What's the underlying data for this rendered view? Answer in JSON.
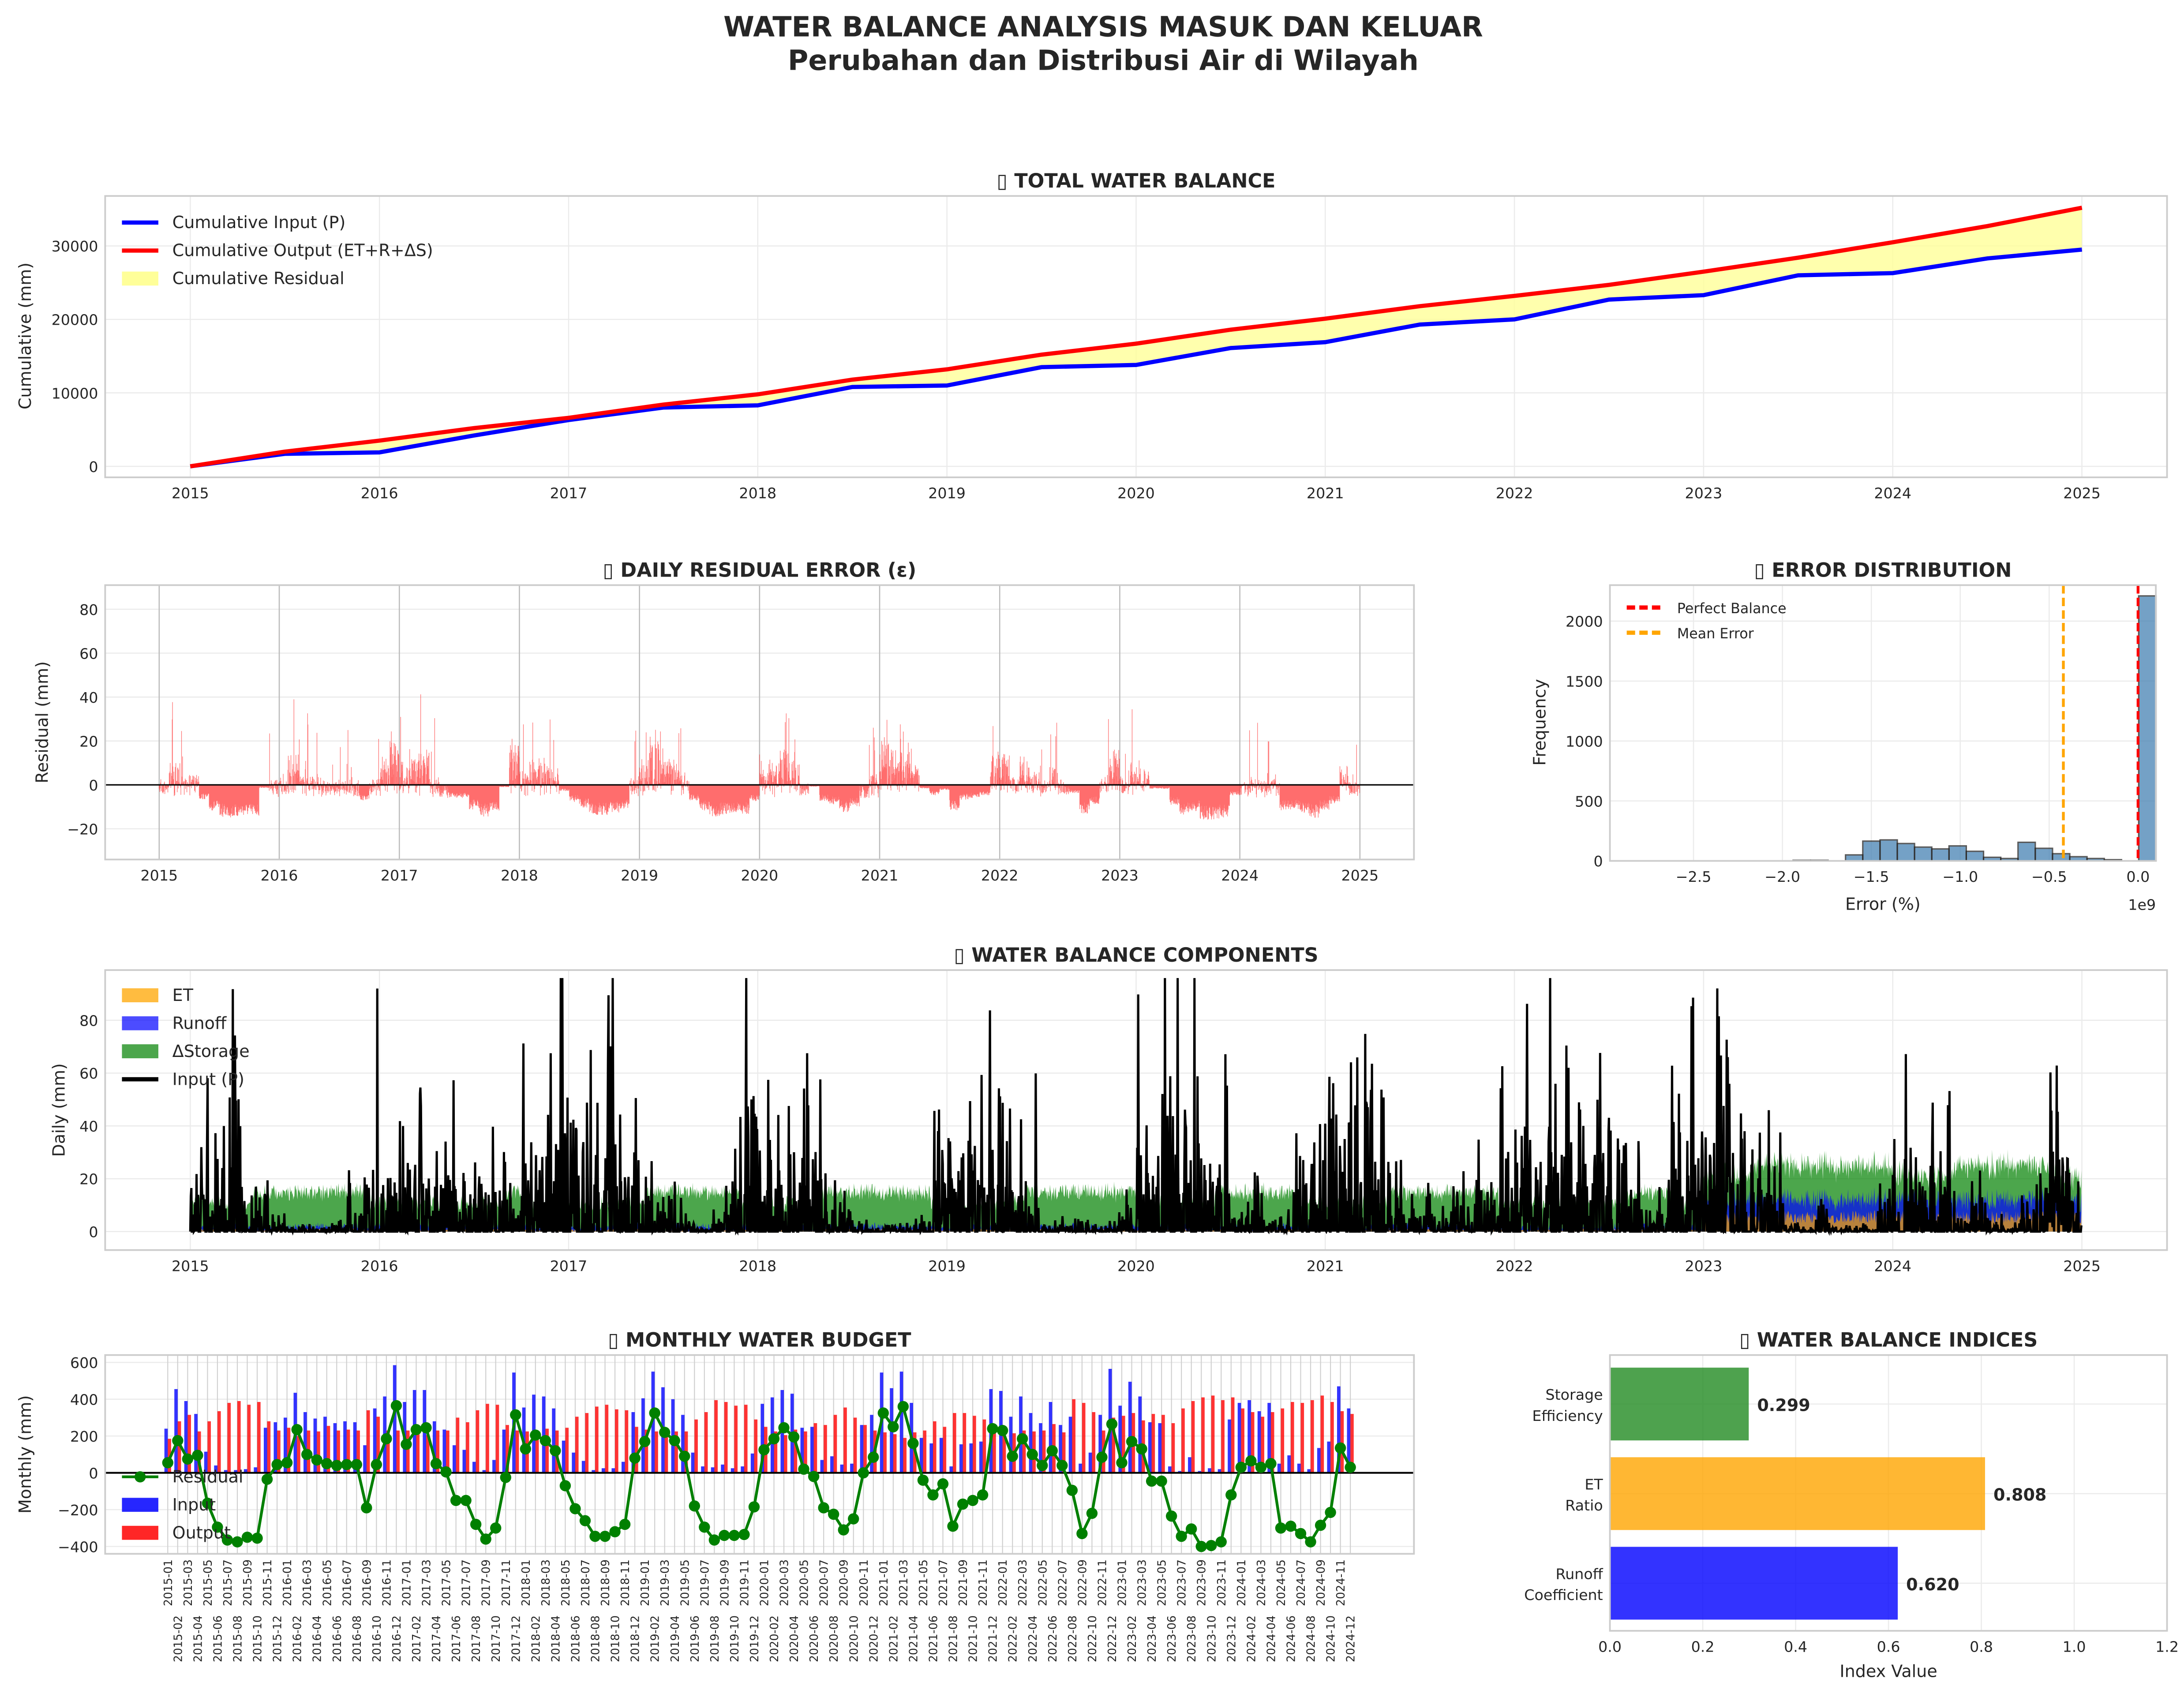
{
  "figure": {
    "title_line1": "WATER BALANCE ANALYSIS MASUK DAN KELUAR",
    "title_line2": "Perubahan dan Distribusi Air di Wilayah"
  },
  "chart_data": [
    {
      "id": "cumulative",
      "type": "line",
      "title": "TOTAL WATER BALANCE",
      "title_icon": "missing-glyph-box",
      "xlabel": "",
      "ylabel": "Cumulative (mm)",
      "xlim": [
        2014.55,
        2025.45
      ],
      "ylim": [
        -1500,
        36800
      ],
      "xticks": [
        "2015",
        "2016",
        "2017",
        "2018",
        "2019",
        "2020",
        "2021",
        "2022",
        "2023",
        "2024",
        "2025"
      ],
      "yticks": [
        "0",
        "10000",
        "20000",
        "30000"
      ],
      "grid": true,
      "legend": "top-left",
      "x": [
        2015,
        2015.5,
        2016,
        2016.5,
        2017,
        2017.5,
        2018,
        2018.5,
        2019,
        2019.5,
        2020,
        2020.5,
        2021,
        2021.5,
        2022,
        2022.5,
        2023,
        2023.5,
        2024,
        2024.5,
        2025
      ],
      "series": [
        {
          "name": "Cumulative Input (P)",
          "color": "#0000ff",
          "values": [
            0,
            1700,
            1900,
            4200,
            6300,
            8000,
            8300,
            10800,
            11000,
            13500,
            13800,
            16100,
            16900,
            19300,
            20000,
            22700,
            23300,
            26000,
            26300,
            28300,
            29500
          ]
        },
        {
          "name": "Cumulative Output (ET+R+ΔS)",
          "color": "#ff0000",
          "values": [
            0,
            2000,
            3500,
            5200,
            6600,
            8400,
            9800,
            11800,
            13200,
            15200,
            16700,
            18600,
            20100,
            21800,
            23200,
            24700,
            26500,
            28400,
            30500,
            32700,
            35200
          ]
        },
        {
          "name": "Cumulative Residual",
          "color": "#ffff99",
          "type": "area-between"
        }
      ]
    },
    {
      "id": "daily-residual",
      "type": "bar",
      "title": "DAILY RESIDUAL ERROR (ε)",
      "title_icon": "missing-glyph-box",
      "xlabel": "",
      "ylabel": "Residual (mm)",
      "xlim": [
        2014.55,
        2025.45
      ],
      "ylim": [
        -34,
        91
      ],
      "xticks": [
        "2015",
        "2016",
        "2017",
        "2018",
        "2019",
        "2020",
        "2021",
        "2022",
        "2023",
        "2024",
        "2025"
      ],
      "yticks": [
        "−20",
        "0",
        "20",
        "40",
        "60",
        "80"
      ],
      "color": "#ff0000",
      "grid": true,
      "note_values": "daily bars derived from monthly residual / days"
    },
    {
      "id": "error-distribution",
      "type": "bar",
      "title": "ERROR DISTRIBUTION",
      "title_icon": "missing-glyph-box",
      "xlabel": "Error (%)",
      "ylabel": "Frequency",
      "x_offset_label": "1e9",
      "xlim": [
        -2.97,
        0.1
      ],
      "ylim": [
        0,
        2300
      ],
      "xticks": [
        "−2.5",
        "−2.0",
        "−1.5",
        "−1.0",
        "−0.5",
        "0.0"
      ],
      "yticks": [
        "0",
        "500",
        "1000",
        "1500",
        "2000"
      ],
      "bin_width": 0.097,
      "color": "#4682b4",
      "grid": true,
      "legend": "top-left",
      "bins_start": [
        -1.94,
        -1.84,
        -1.74,
        -1.645,
        -1.548,
        -1.451,
        -1.354,
        -1.257,
        -1.16,
        -1.063,
        -0.966,
        -0.869,
        -0.772,
        -0.675,
        -0.578,
        -0.481,
        -0.384,
        -0.287,
        -0.19,
        -0.093,
        0.004
      ],
      "counts": [
        5,
        5,
        0,
        50,
        165,
        175,
        145,
        115,
        100,
        125,
        80,
        30,
        20,
        155,
        105,
        60,
        35,
        20,
        10,
        0,
        2210
      ],
      "lines": [
        {
          "name": "Perfect Balance",
          "x": 0.0,
          "color": "#ff0000"
        },
        {
          "name": "Mean Error",
          "x": -0.42,
          "color": "#ffa500"
        }
      ]
    },
    {
      "id": "components",
      "type": "area",
      "title": "WATER BALANCE COMPONENTS",
      "title_icon": "missing-glyph-box",
      "xlabel": "",
      "ylabel": "Daily (mm)",
      "xlim": [
        2014.55,
        2025.45
      ],
      "ylim": [
        -7,
        99
      ],
      "xticks": [
        "2015",
        "2016",
        "2017",
        "2018",
        "2019",
        "2020",
        "2021",
        "2022",
        "2023",
        "2024",
        "2025"
      ],
      "yticks": [
        "0",
        "20",
        "40",
        "60",
        "80"
      ],
      "grid": true,
      "legend": "top-left",
      "series": [
        {
          "name": "ET",
          "color": "#ffa500"
        },
        {
          "name": "Runoff",
          "color": "#0000ff"
        },
        {
          "name": "ΔStorage",
          "color": "#008000"
        },
        {
          "name": "Input (P)",
          "color": "#000000"
        }
      ]
    },
    {
      "id": "monthly-budget",
      "type": "bar",
      "title": "MONTHLY WATER BUDGET",
      "title_icon": "missing-glyph-box",
      "xlabel": "",
      "ylabel": "Monthly (mm)",
      "ylim": [
        -440,
        640
      ],
      "yticks": [
        "−400",
        "−200",
        "0",
        "200",
        "400",
        "600"
      ],
      "grid": true,
      "legend": "bottom-left",
      "series": [
        {
          "name": "Input",
          "color": "#0000ff",
          "values": [
            240,
            455,
            390,
            320,
            115,
            40,
            15,
            15,
            20,
            30,
            245,
            275,
            300,
            435,
            330,
            295,
            305,
            270,
            280,
            275,
            150,
            350,
            415,
            585,
            385,
            450,
            450,
            280,
            235,
            150,
            125,
            60,
            15,
            70,
            235,
            545,
            355,
            425,
            415,
            350,
            175,
            110,
            65,
            15,
            25,
            25,
            60,
            330,
            405,
            550,
            465,
            400,
            315,
            110,
            35,
            30,
            45,
            25,
            35,
            105,
            375,
            410,
            450,
            430,
            245,
            250,
            70,
            90,
            45,
            50,
            260,
            315,
            545,
            460,
            550,
            380,
            190,
            160,
            190,
            35,
            155,
            160,
            170,
            455,
            445,
            305,
            415,
            325,
            270,
            385,
            260,
            305,
            50,
            110,
            315,
            565,
            365,
            495,
            415,
            275,
            270,
            35,
            10,
            85,
            10,
            25,
            20,
            290,
            380,
            395,
            335,
            380,
            50,
            95,
            50,
            20,
            135,
            170,
            470,
            350
          ]
        },
        {
          "name": "Output",
          "color": "#ff0000",
          "values": [
            185,
            280,
            315,
            225,
            280,
            335,
            380,
            390,
            370,
            385,
            280,
            230,
            245,
            200,
            230,
            225,
            255,
            230,
            235,
            230,
            340,
            305,
            230,
            230,
            230,
            215,
            205,
            230,
            230,
            300,
            275,
            340,
            375,
            370,
            260,
            230,
            225,
            220,
            240,
            230,
            245,
            305,
            325,
            360,
            370,
            345,
            340,
            250,
            235,
            225,
            245,
            225,
            225,
            290,
            330,
            395,
            385,
            365,
            370,
            290,
            250,
            225,
            205,
            235,
            225,
            270,
            260,
            315,
            355,
            300,
            260,
            230,
            220,
            210,
            190,
            220,
            230,
            280,
            250,
            325,
            325,
            310,
            290,
            215,
            215,
            215,
            230,
            225,
            230,
            265,
            220,
            400,
            380,
            330,
            230,
            300,
            310,
            325,
            285,
            320,
            315,
            270,
            350,
            390,
            410,
            420,
            395,
            410,
            350,
            330,
            305,
            330,
            350,
            385,
            380,
            395,
            420,
            385,
            335,
            320
          ]
        },
        {
          "name": "Residual",
          "color": "#008000",
          "values": [
            55,
            175,
            75,
            95,
            -165,
            -295,
            -365,
            -375,
            -350,
            -355,
            -35,
            45,
            55,
            235,
            100,
            70,
            50,
            40,
            45,
            45,
            -190,
            45,
            185,
            365,
            155,
            235,
            245,
            50,
            5,
            -150,
            -150,
            -280,
            -360,
            -300,
            -25,
            315,
            130,
            205,
            175,
            120,
            -70,
            -195,
            -260,
            -345,
            -345,
            -320,
            -280,
            80,
            170,
            325,
            220,
            175,
            90,
            -180,
            -295,
            -365,
            -340,
            -340,
            -335,
            -185,
            125,
            185,
            245,
            195,
            20,
            -20,
            -190,
            -225,
            -310,
            -250,
            0,
            85,
            325,
            250,
            360,
            160,
            -40,
            -120,
            -60,
            -290,
            -170,
            -150,
            -120,
            240,
            230,
            90,
            185,
            100,
            40,
            120,
            40,
            -95,
            -330,
            -220,
            85,
            265,
            55,
            170,
            130,
            -45,
            -45,
            -235,
            -345,
            -305,
            -400,
            -395,
            -375,
            -120,
            30,
            65,
            30,
            50,
            -300,
            -290,
            -330,
            -375,
            -285,
            -215,
            135,
            30
          ]
        }
      ]
    },
    {
      "id": "indices",
      "type": "bar",
      "orientation": "horizontal",
      "title": "WATER BALANCE INDICES",
      "title_icon": "missing-glyph-box",
      "xlabel": "Index Value",
      "ylabel": "",
      "xlim": [
        0,
        1.2
      ],
      "xticks": [
        "0.0",
        "0.2",
        "0.4",
        "0.6",
        "0.8",
        "1.0",
        "1.2"
      ],
      "grid": true,
      "categories": [
        [
          "Storage",
          "Efficiency"
        ],
        [
          "ET",
          "Ratio"
        ],
        [
          "Runoff",
          "Coefficient"
        ]
      ],
      "values": [
        0.299,
        0.808,
        0.62
      ],
      "labels": [
        "0.299",
        "0.808",
        "0.620"
      ],
      "colors": [
        "#228b22",
        "#ffa500",
        "#0000ff"
      ]
    }
  ]
}
